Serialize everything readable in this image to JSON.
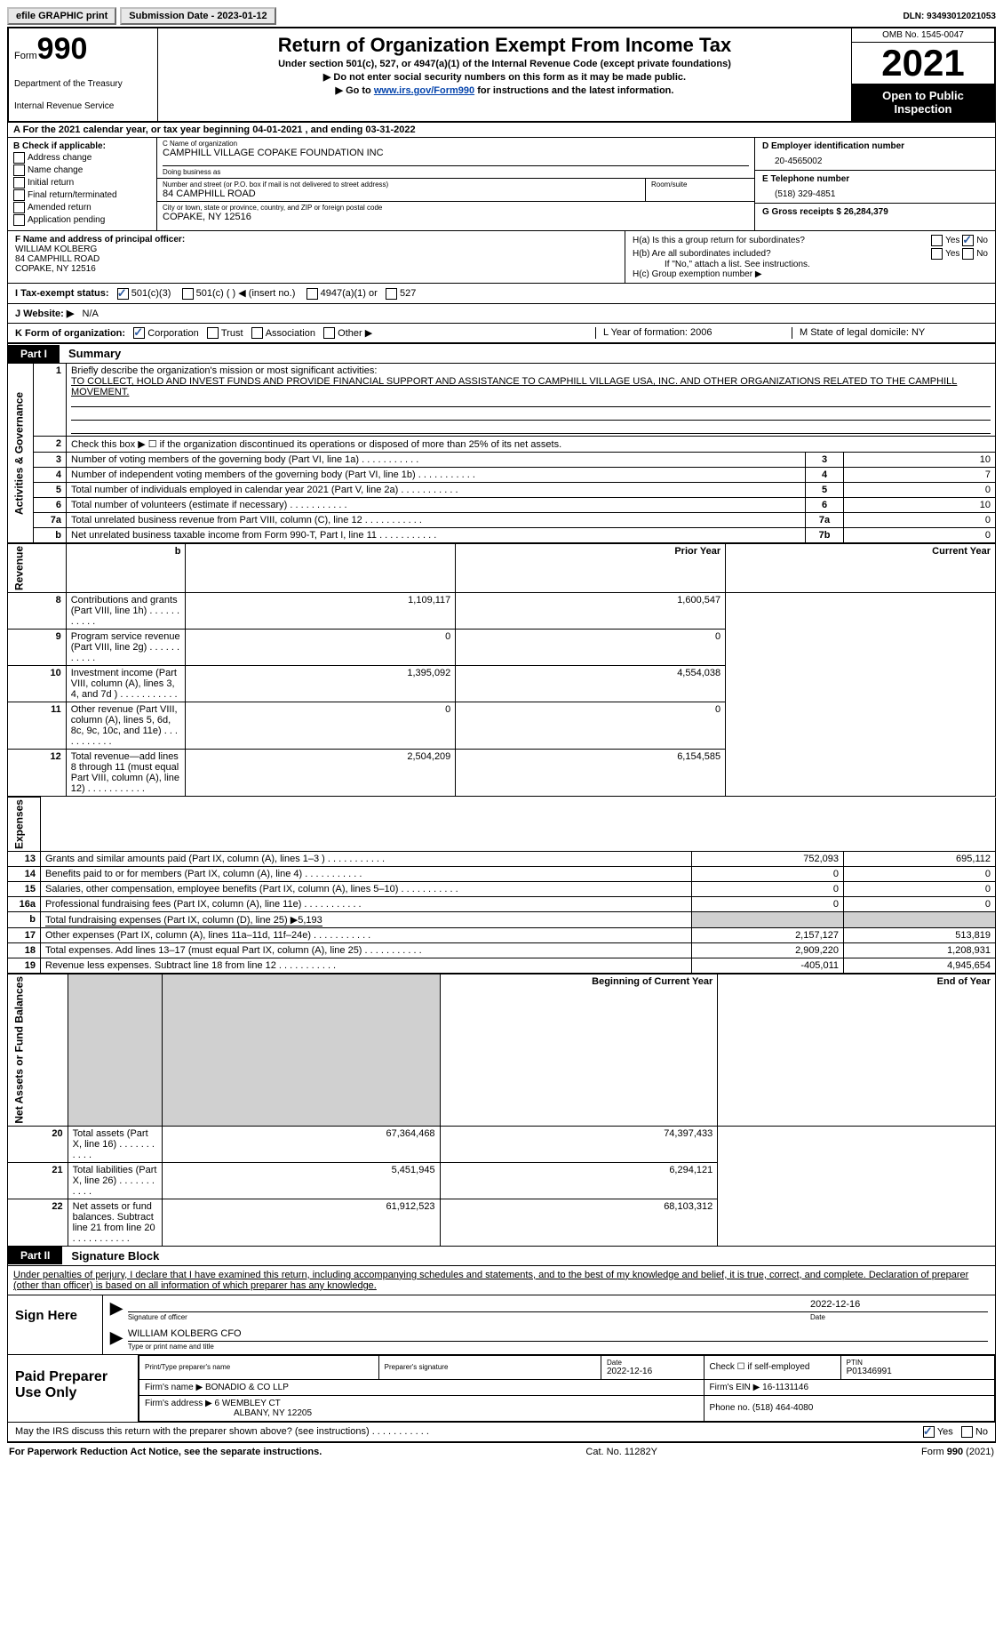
{
  "topbar": {
    "efile": "efile GRAPHIC print",
    "sub_label": "Submission Date - 2023-01-12",
    "dln_label": "DLN: 93493012021053"
  },
  "header": {
    "form_word": "Form",
    "form_no": "990",
    "dept": "Department of the Treasury",
    "irs": "Internal Revenue Service",
    "title": "Return of Organization Exempt From Income Tax",
    "sub1": "Under section 501(c), 527, or 4947(a)(1) of the Internal Revenue Code (except private foundations)",
    "sub2": "▶ Do not enter social security numbers on this form as it may be made public.",
    "sub3_pre": "▶ Go to ",
    "sub3_link": "www.irs.gov/Form990",
    "sub3_post": " for instructions and the latest information.",
    "omb": "OMB No. 1545-0047",
    "year": "2021",
    "inspect": "Open to Public Inspection"
  },
  "rowA": "A For the 2021 calendar year, or tax year beginning 04-01-2021    , and ending 03-31-2022",
  "colB": {
    "hdr": "B Check if applicable:",
    "items": [
      "Address change",
      "Name change",
      "Initial return",
      "Final return/terminated",
      "Amended return",
      "Application pending"
    ]
  },
  "colC": {
    "name_lbl": "C Name of organization",
    "name_val": "CAMPHILL VILLAGE COPAKE FOUNDATION INC",
    "dba_lbl": "Doing business as",
    "dba_val": "",
    "street_lbl": "Number and street (or P.O. box if mail is not delivered to street address)",
    "street_val": "84 CAMPHILL ROAD",
    "room_lbl": "Room/suite",
    "room_val": "",
    "city_lbl": "City or town, state or province, country, and ZIP or foreign postal code",
    "city_val": "COPAKE, NY  12516"
  },
  "colD": {
    "ein_lbl": "D Employer identification number",
    "ein_val": "20-4565002",
    "tel_lbl": "E Telephone number",
    "tel_val": "(518) 329-4851",
    "gross_lbl": "G Gross receipts $ 26,284,379"
  },
  "colF": {
    "lbl": "F Name and address of principal officer:",
    "name": "WILLIAM KOLBERG",
    "addr1": "84 CAMPHILL ROAD",
    "addr2": "COPAKE, NY  12516"
  },
  "colH": {
    "ha": "H(a)  Is this a group return for subordinates?",
    "hb": "H(b)  Are all subordinates included?",
    "hb_note": "If \"No,\" attach a list. See instructions.",
    "hc": "H(c)  Group exemption number ▶",
    "yes": "Yes",
    "no": "No"
  },
  "rowI": {
    "lbl": "I  Tax-exempt status:",
    "o1": "501(c)(3)",
    "o2": "501(c) (   ) ◀ (insert no.)",
    "o3": "4947(a)(1) or",
    "o4": "527"
  },
  "rowJ": {
    "lbl": "J  Website: ▶",
    "val": "N/A"
  },
  "rowK": {
    "lbl": "K Form of organization:",
    "o1": "Corporation",
    "o2": "Trust",
    "o3": "Association",
    "o4": "Other ▶",
    "l_lbl": "L Year of formation: 2006",
    "m_lbl": "M State of legal domicile: NY"
  },
  "part1": {
    "tag": "Part I",
    "title": "Summary"
  },
  "summary": {
    "side1": "Activities & Governance",
    "side2": "Revenue",
    "side3": "Expenses",
    "side4": "Net Assets or Fund Balances",
    "l1": "Briefly describe the organization's mission or most significant activities:",
    "l1val": "TO COLLECT, HOLD AND INVEST FUNDS AND PROVIDE FINANCIAL SUPPORT AND ASSISTANCE TO CAMPHILL VILLAGE USA, INC. AND OTHER ORGANIZATIONS RELATED TO THE CAMPHILL MOVEMENT.",
    "l2": "Check this box ▶ ☐  if the organization discontinued its operations or disposed of more than 25% of its net assets.",
    "rows_ag": [
      {
        "n": "3",
        "d": "Number of voting members of the governing body (Part VI, line 1a)",
        "b": "3",
        "v": "10"
      },
      {
        "n": "4",
        "d": "Number of independent voting members of the governing body (Part VI, line 1b)",
        "b": "4",
        "v": "7"
      },
      {
        "n": "5",
        "d": "Total number of individuals employed in calendar year 2021 (Part V, line 2a)",
        "b": "5",
        "v": "0"
      },
      {
        "n": "6",
        "d": "Total number of volunteers (estimate if necessary)",
        "b": "6",
        "v": "10"
      },
      {
        "n": "7a",
        "d": "Total unrelated business revenue from Part VIII, column (C), line 12",
        "b": "7a",
        "v": "0"
      },
      {
        "n": "b",
        "d": "Net unrelated business taxable income from Form 990-T, Part I, line 11",
        "b": "7b",
        "v": "0"
      }
    ],
    "hdr_py": "Prior Year",
    "hdr_cy": "Current Year",
    "rows_rev": [
      {
        "n": "8",
        "d": "Contributions and grants (Part VIII, line 1h)",
        "py": "1,109,117",
        "cy": "1,600,547"
      },
      {
        "n": "9",
        "d": "Program service revenue (Part VIII, line 2g)",
        "py": "0",
        "cy": "0"
      },
      {
        "n": "10",
        "d": "Investment income (Part VIII, column (A), lines 3, 4, and 7d )",
        "py": "1,395,092",
        "cy": "4,554,038"
      },
      {
        "n": "11",
        "d": "Other revenue (Part VIII, column (A), lines 5, 6d, 8c, 9c, 10c, and 11e)",
        "py": "0",
        "cy": "0"
      },
      {
        "n": "12",
        "d": "Total revenue—add lines 8 through 11 (must equal Part VIII, column (A), line 12)",
        "py": "2,504,209",
        "cy": "6,154,585"
      }
    ],
    "rows_exp": [
      {
        "n": "13",
        "d": "Grants and similar amounts paid (Part IX, column (A), lines 1–3 )",
        "py": "752,093",
        "cy": "695,112"
      },
      {
        "n": "14",
        "d": "Benefits paid to or for members (Part IX, column (A), line 4)",
        "py": "0",
        "cy": "0"
      },
      {
        "n": "15",
        "d": "Salaries, other compensation, employee benefits (Part IX, column (A), lines 5–10)",
        "py": "0",
        "cy": "0"
      },
      {
        "n": "16a",
        "d": "Professional fundraising fees (Part IX, column (A), line 11e)",
        "py": "0",
        "cy": "0"
      }
    ],
    "l16b": "Total fundraising expenses (Part IX, column (D), line 25) ▶5,193",
    "rows_exp2": [
      {
        "n": "17",
        "d": "Other expenses (Part IX, column (A), lines 11a–11d, 11f–24e)",
        "py": "2,157,127",
        "cy": "513,819"
      },
      {
        "n": "18",
        "d": "Total expenses. Add lines 13–17 (must equal Part IX, column (A), line 25)",
        "py": "2,909,220",
        "cy": "1,208,931"
      },
      {
        "n": "19",
        "d": "Revenue less expenses. Subtract line 18 from line 12",
        "py": "-405,011",
        "cy": "4,945,654"
      }
    ],
    "hdr_boy": "Beginning of Current Year",
    "hdr_eoy": "End of Year",
    "rows_net": [
      {
        "n": "20",
        "d": "Total assets (Part X, line 16)",
        "py": "67,364,468",
        "cy": "74,397,433"
      },
      {
        "n": "21",
        "d": "Total liabilities (Part X, line 26)",
        "py": "5,451,945",
        "cy": "6,294,121"
      },
      {
        "n": "22",
        "d": "Net assets or fund balances. Subtract line 21 from line 20",
        "py": "61,912,523",
        "cy": "68,103,312"
      }
    ]
  },
  "part2": {
    "tag": "Part II",
    "title": "Signature Block"
  },
  "sig": {
    "decl": "Under penalties of perjury, I declare that I have examined this return, including accompanying schedules and statements, and to the best of my knowledge and belief, it is true, correct, and complete. Declaration of preparer (other than officer) is based on all information of which preparer has any knowledge.",
    "sign_here": "Sign Here",
    "sig_of_officer": "Signature of officer",
    "sig_date": "2022-12-16",
    "date_lbl": "Date",
    "name_title": "WILLIAM KOLBERG CFO",
    "name_title_lbl": "Type or print name and title"
  },
  "paid": {
    "lbl": "Paid Preparer Use Only",
    "print_lbl": "Print/Type preparer's name",
    "print_val": "",
    "sig_lbl": "Preparer's signature",
    "date_lbl": "Date",
    "date_val": "2022-12-16",
    "self_lbl": "Check ☐ if self-employed",
    "ptin_lbl": "PTIN",
    "ptin_val": "P01346991",
    "firm_lbl": "Firm's name     ▶",
    "firm_val": "BONADIO & CO LLP",
    "ein_lbl": "Firm's EIN ▶ 16-1131146",
    "addr_lbl": "Firm's address ▶",
    "addr_val1": "6 WEMBLEY CT",
    "addr_val2": "ALBANY, NY  12205",
    "phone_lbl": "Phone no. (518) 464-4080"
  },
  "discuss": {
    "q": "May the IRS discuss this return with the preparer shown above? (see instructions)",
    "yes": "Yes",
    "no": "No"
  },
  "footer": {
    "l": "For Paperwork Reduction Act Notice, see the separate instructions.",
    "c": "Cat. No. 11282Y",
    "r": "Form 990 (2021)"
  }
}
